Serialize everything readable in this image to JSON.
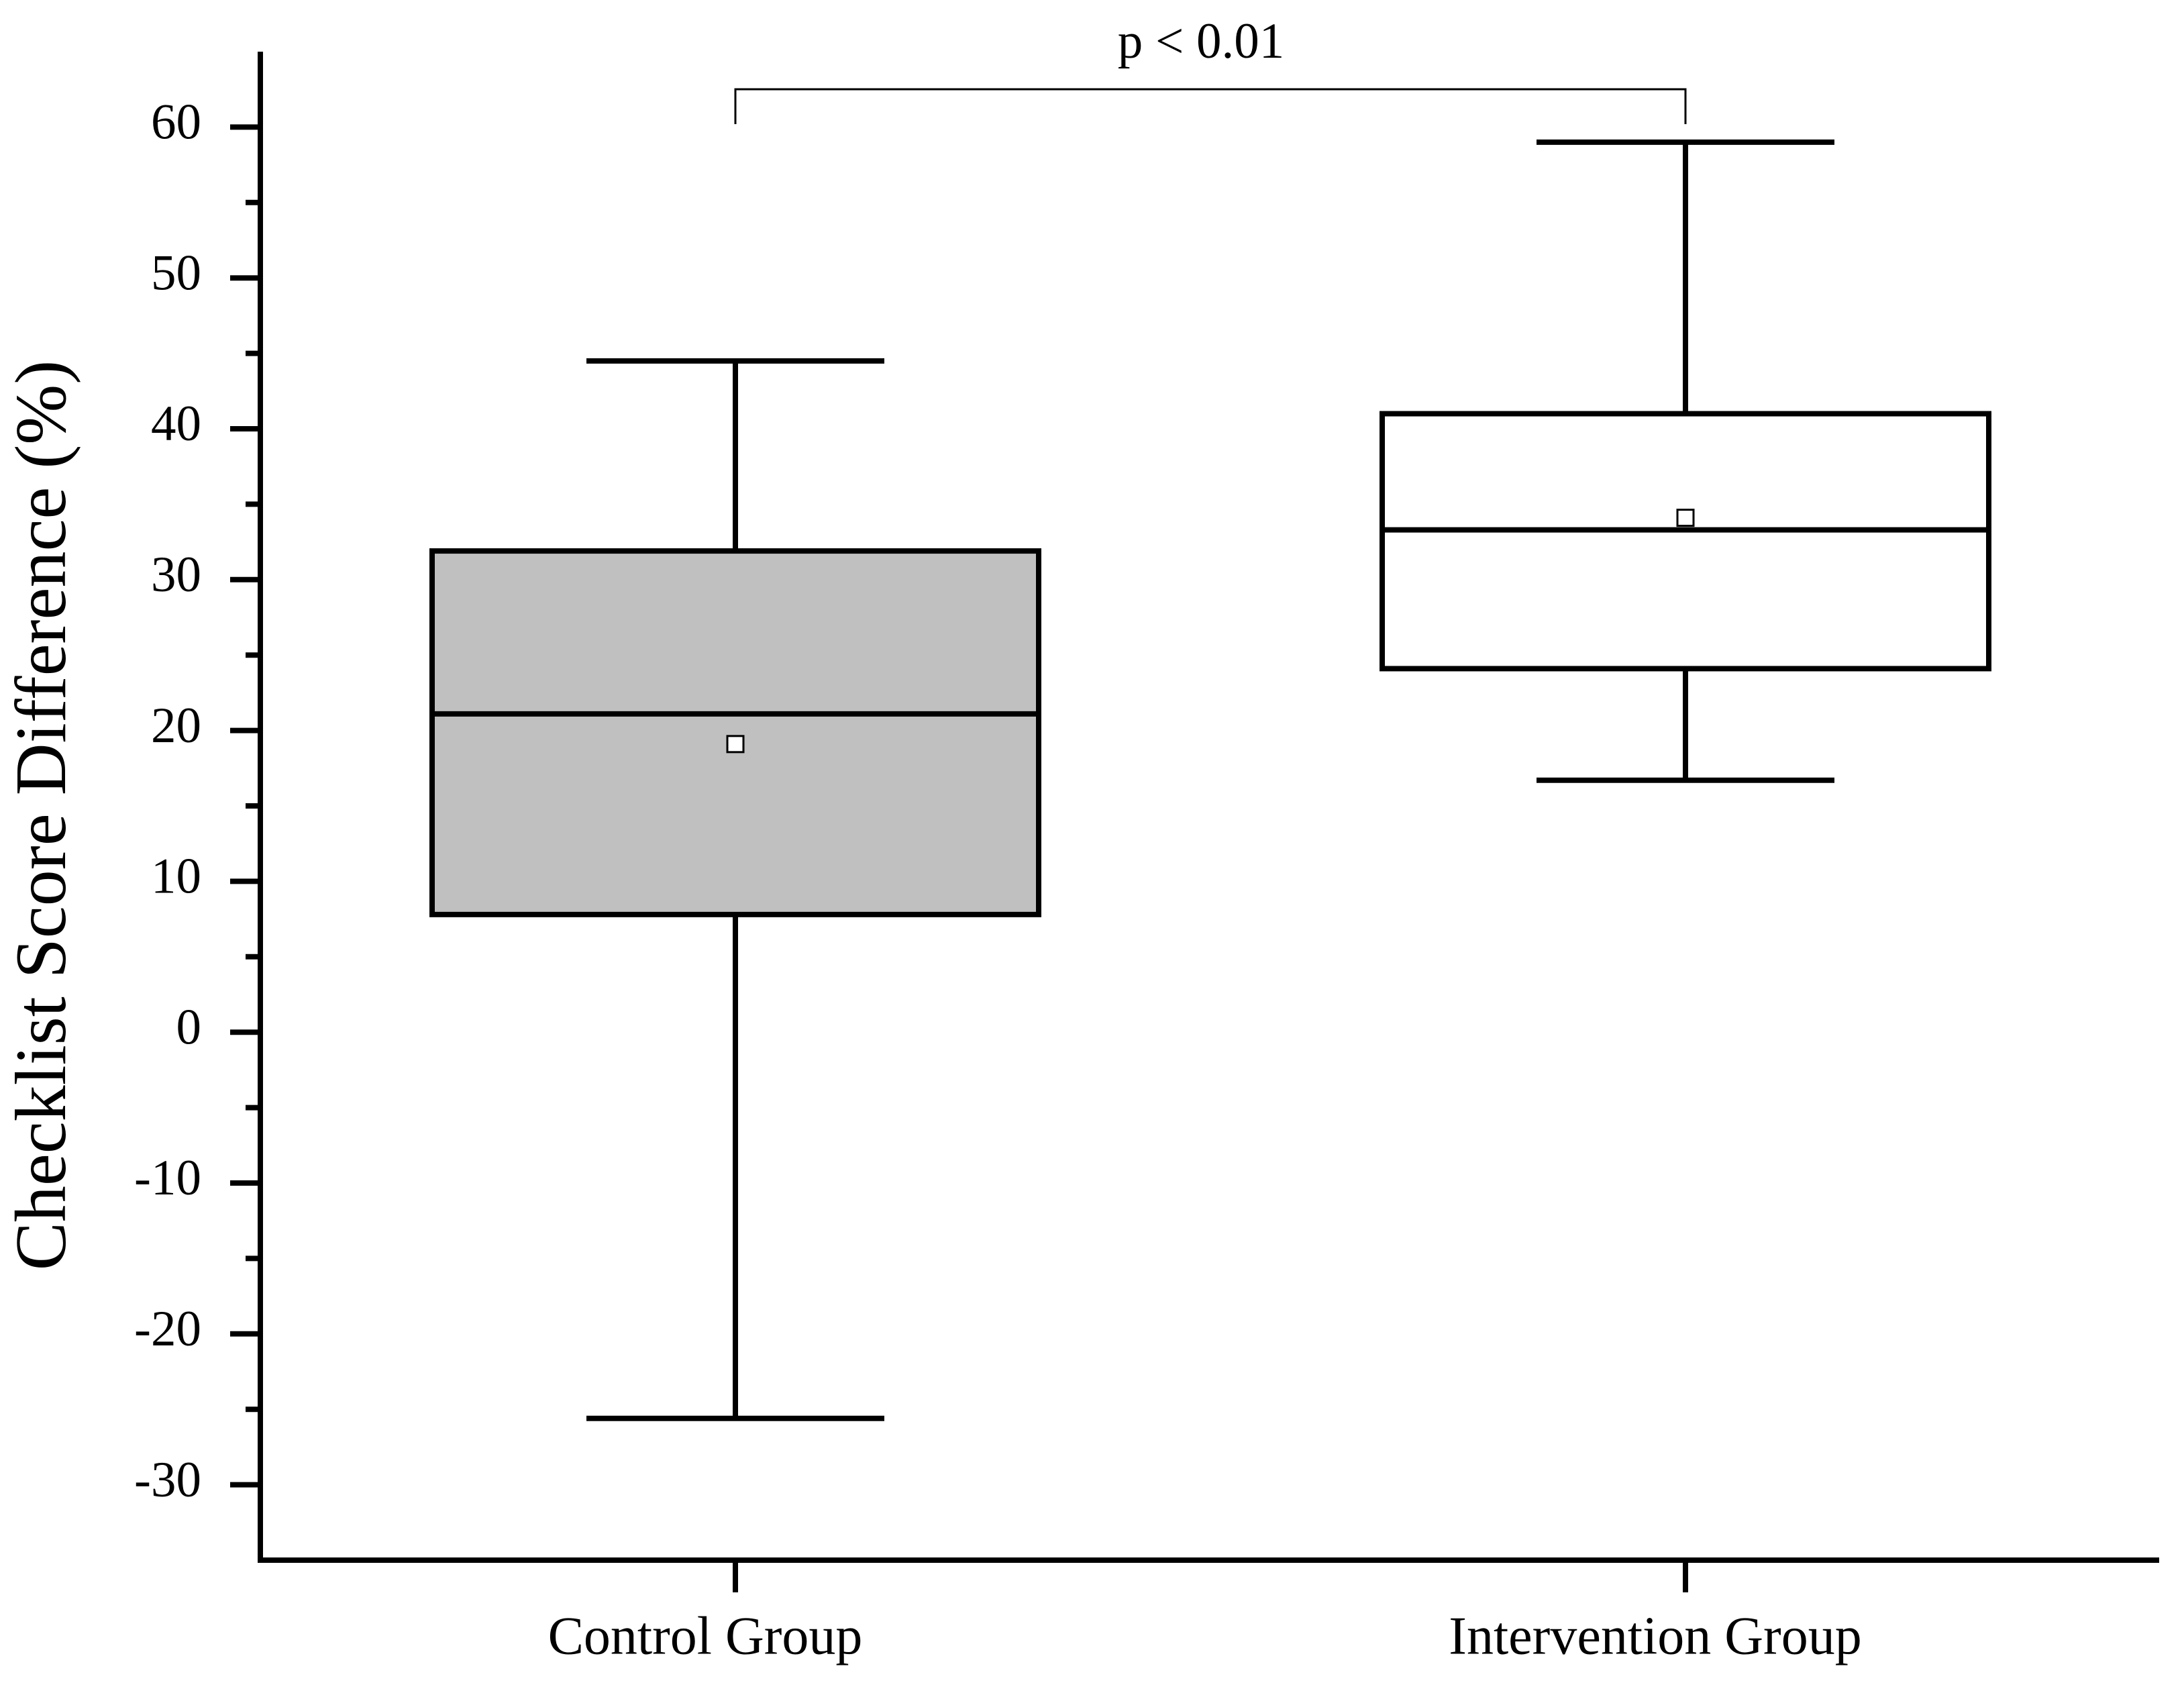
{
  "chart_data": {
    "type": "box",
    "y_label": "Checklist Score Difference (%)",
    "annotation": "p < 0.01",
    "categories": [
      "Control Group",
      "Intervention Group"
    ],
    "boxes": [
      {
        "min": -25.6,
        "q1": 7.8,
        "median": 21.1,
        "q3": 31.9,
        "max": 44.5,
        "mean": 19.1,
        "color": "#c0c0c0"
      },
      {
        "min": 16.7,
        "q1": 24.1,
        "median": 33.3,
        "q3": 41,
        "max": 59,
        "mean": 34.1,
        "color": "#ffffff"
      }
    ],
    "ylim": [
      -35,
      65
    ],
    "yticks": [
      -30,
      -20,
      -10,
      0,
      10,
      20,
      30,
      40,
      50,
      60
    ],
    "minor_yticks": [
      -25,
      -15,
      -5,
      5,
      15,
      25,
      35,
      45,
      55
    ]
  }
}
